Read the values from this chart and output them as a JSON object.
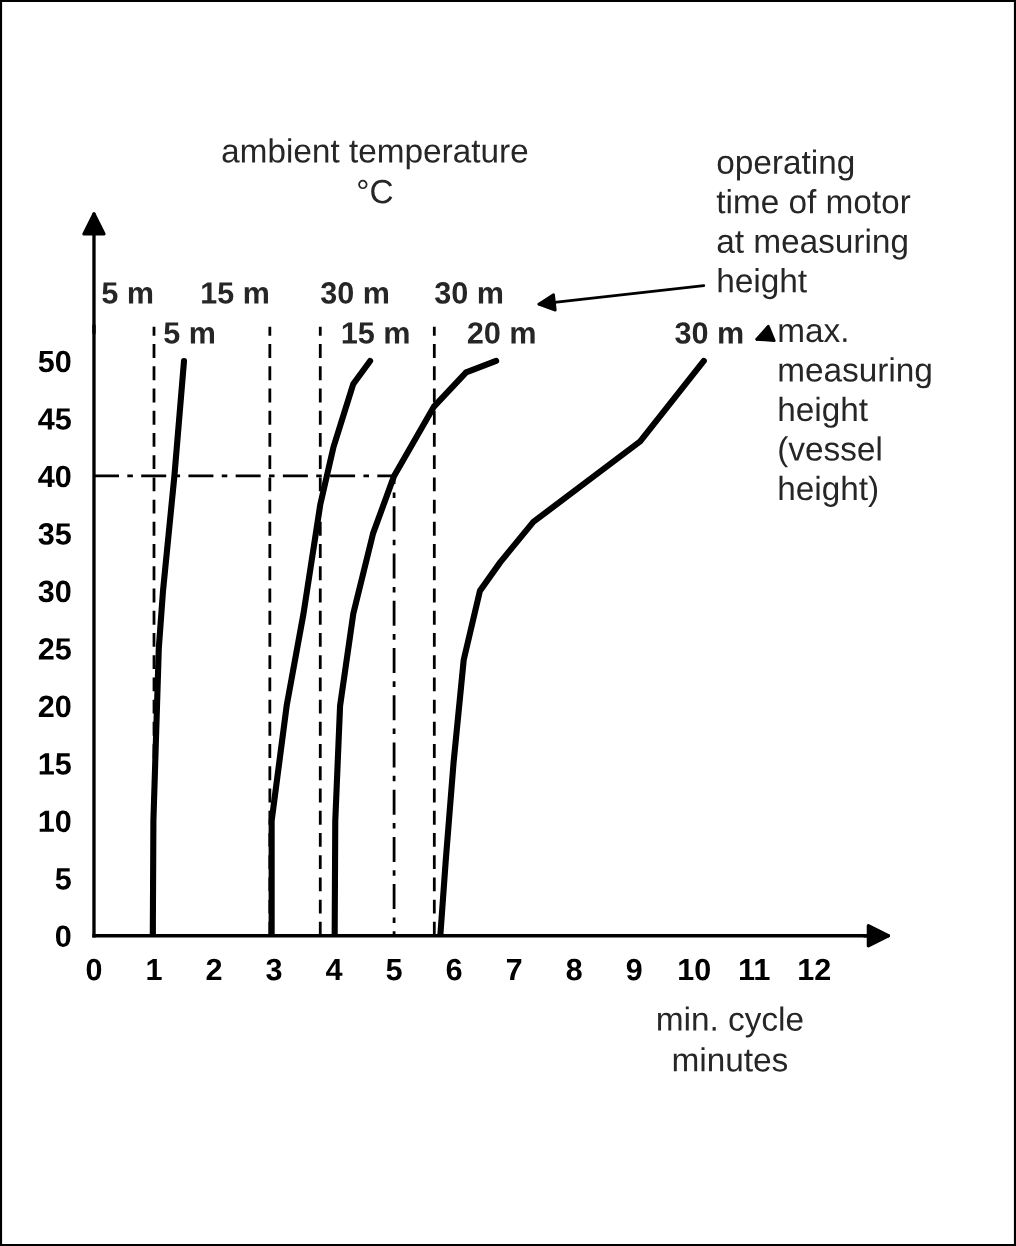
{
  "chart_data": {
    "type": "line",
    "ylabel": "ambient temperature\n°C",
    "xlabel": "min. cycle\nminutes",
    "xlim": [
      0,
      13
    ],
    "xticks": [
      0,
      1,
      2,
      3,
      4,
      5,
      6,
      7,
      8,
      9,
      10,
      11,
      12
    ],
    "ylim": [
      0,
      53
    ],
    "yticks": [
      0,
      5,
      10,
      15,
      20,
      25,
      30,
      35,
      40,
      45,
      50
    ],
    "grid": false,
    "series": [
      {
        "name": "5 m",
        "color": "#000000",
        "x": [
          0.98,
          0.99,
          1.02,
          1.08,
          1.15,
          1.34,
          1.5
        ],
        "values": [
          0,
          10,
          15,
          25,
          30,
          40,
          50
        ]
      },
      {
        "name": "15 m",
        "color": "#000000",
        "x": [
          2.96,
          2.96,
          3.21,
          3.49,
          3.77,
          3.99,
          4.32,
          4.6
        ],
        "values": [
          0,
          10,
          20,
          28,
          37.5,
          42.5,
          48,
          50
        ]
      },
      {
        "name": "20 m",
        "color": "#000000",
        "x": [
          4.01,
          4.02,
          4.1,
          4.32,
          4.65,
          5.0,
          5.66,
          6.2,
          6.7
        ],
        "values": [
          0,
          10,
          20,
          28,
          35,
          40,
          46,
          49,
          50
        ]
      },
      {
        "name": "30 m",
        "color": "#000000",
        "x": [
          5.77,
          5.86,
          5.99,
          6.16,
          6.43,
          6.77,
          7.32,
          8.21,
          9.1,
          10.16
        ],
        "values": [
          0,
          6.5,
          15,
          24,
          30,
          32.5,
          36,
          39.5,
          43,
          50
        ]
      },
      {
        "type": "line",
        "line_style": "dashdot",
        "color": "#000000",
        "x": [
          0,
          5,
          5
        ],
        "values": [
          40,
          40,
          0
        ]
      }
    ],
    "ref_lines": [
      {
        "axis": "x",
        "value": 1,
        "label": "5 m",
        "line_style": "dashed",
        "color": "#000000"
      },
      {
        "axis": "x",
        "value": 2.93,
        "label": "15 m",
        "line_style": "dashed",
        "color": "#000000"
      },
      {
        "axis": "x",
        "value": 3.77,
        "label": "30 m",
        "line_style": "dashed",
        "color": "#000000"
      },
      {
        "axis": "x",
        "value": 5.67,
        "label": "30 m",
        "line_style": "dashed",
        "color": "#000000"
      }
    ],
    "annotations": [
      "operating\ntime of motor\nat measuring\nheight",
      "max.\nmeasuring\nheight\n(vessel\nheight)"
    ]
  }
}
